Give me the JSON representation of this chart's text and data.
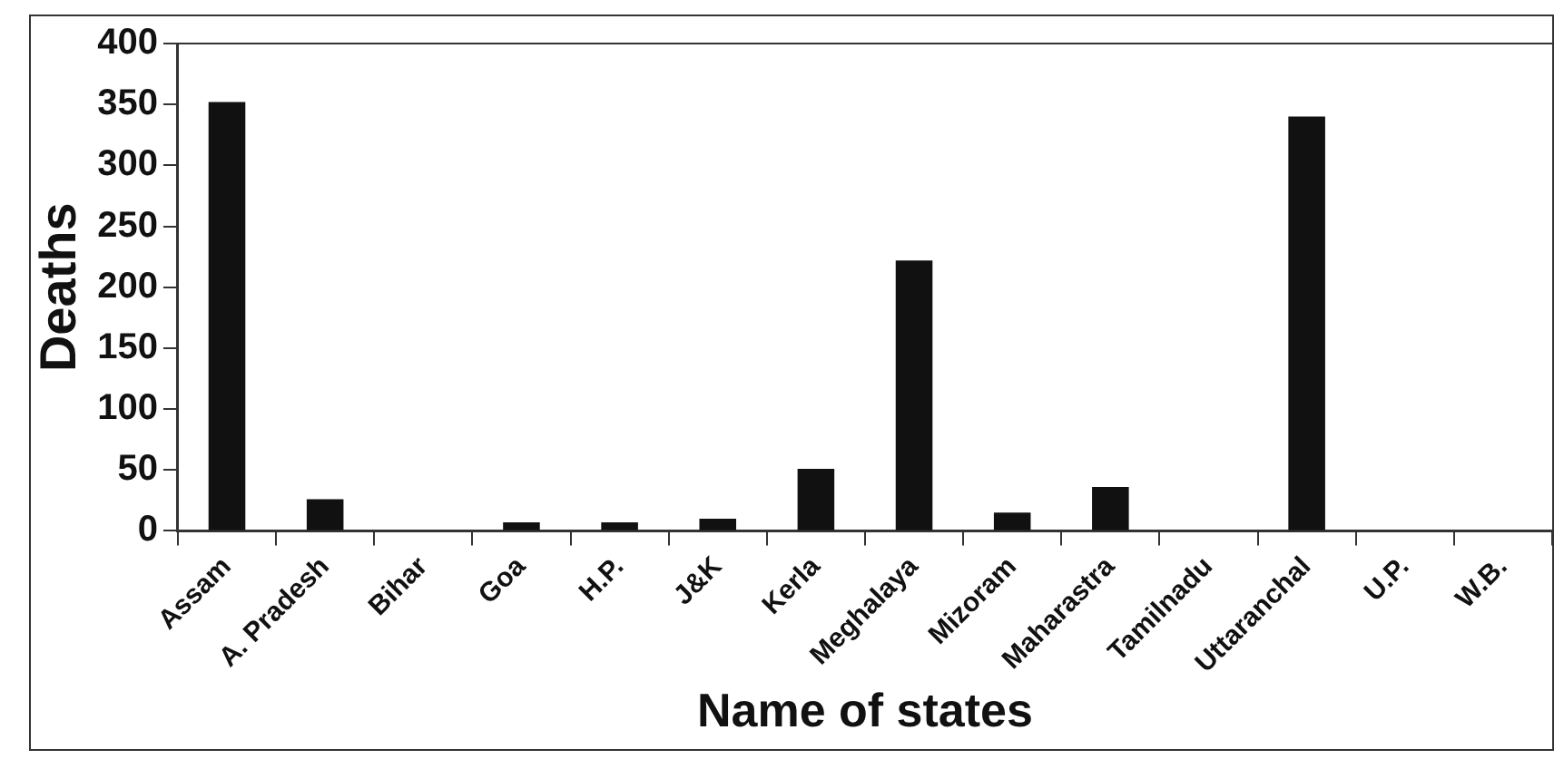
{
  "chart_data": {
    "type": "bar",
    "xlabel": "Name of states",
    "ylabel": "Deaths",
    "categories": [
      "Assam",
      "A. Pradesh",
      "Bihar",
      "Goa",
      "H.P.",
      "J&K",
      "Kerla",
      "Meghalaya",
      "Mizoram",
      "Maharastra",
      "Tamilnadu",
      "Uttaranchal",
      "U.P.",
      "W.B."
    ],
    "values": [
      352,
      26,
      0,
      7,
      7,
      10,
      51,
      222,
      15,
      36,
      0,
      340,
      0,
      0
    ],
    "color": "#111111",
    "ylim": [
      0,
      400
    ],
    "yticks": [
      0,
      50,
      100,
      150,
      200,
      250,
      300,
      350,
      400
    ],
    "grid": false,
    "legend": false
  }
}
